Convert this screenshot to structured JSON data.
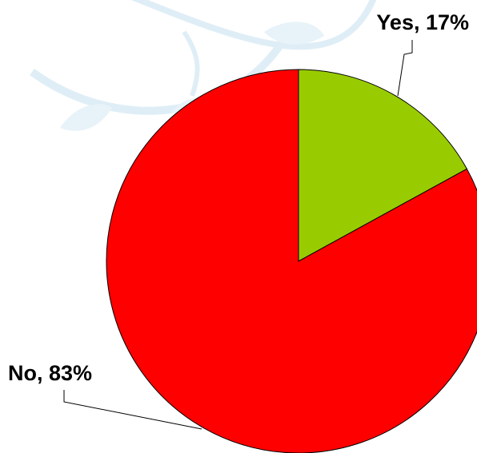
{
  "chart_data": {
    "type": "pie",
    "title": "",
    "categories": [
      "Yes",
      "No"
    ],
    "values": [
      17,
      83
    ],
    "unit": "%",
    "labels": [
      "Yes, 17%",
      "No, 83%"
    ],
    "colors": [
      "#99cc00",
      "#ff0000"
    ],
    "legend": "none",
    "label_style": "category and percent with leader lines"
  },
  "background": {
    "decoration": "faint light-blue swirl watermark"
  }
}
